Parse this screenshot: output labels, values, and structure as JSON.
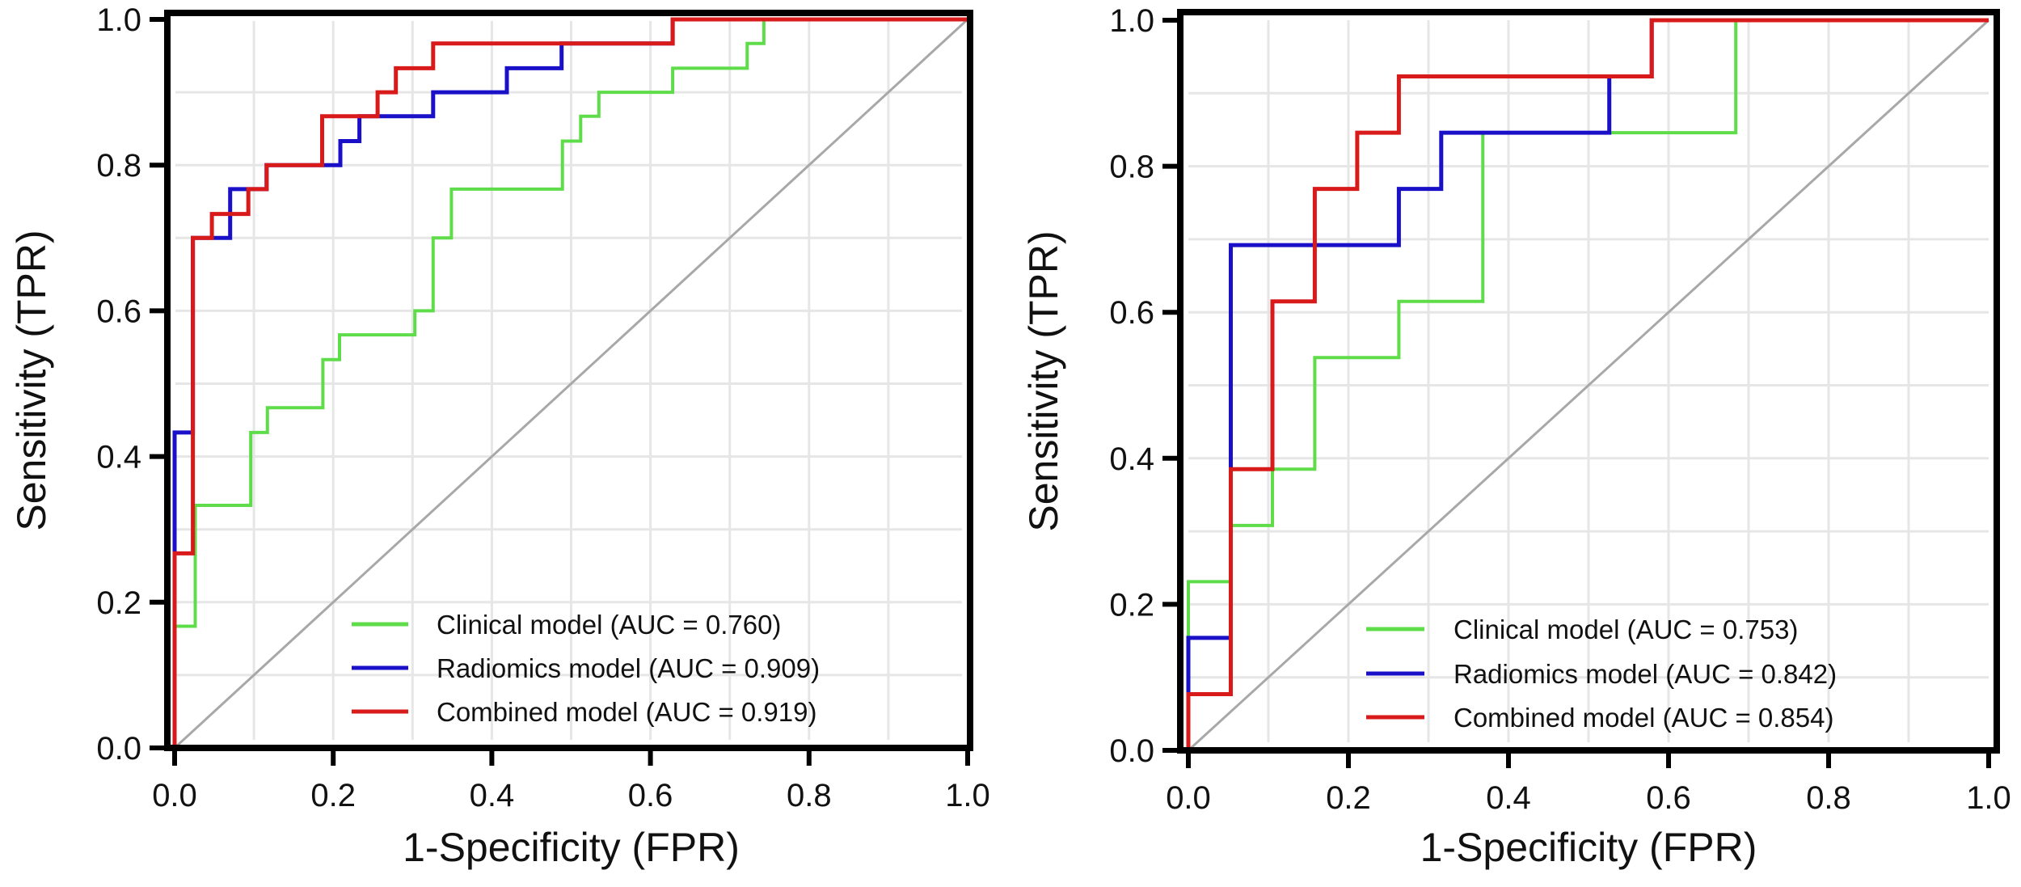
{
  "chart_data": [
    {
      "type": "line",
      "title": "",
      "xlabel": "1-Specificity (FPR)",
      "ylabel": "Sensitivity (TPR)",
      "xlim": [
        0,
        1
      ],
      "ylim": [
        0,
        1
      ],
      "xticks": [
        "0.0",
        "0.2",
        "0.4",
        "0.6",
        "0.8",
        "1.0"
      ],
      "yticks": [
        "0.0",
        "0.2",
        "0.4",
        "0.6",
        "0.8",
        "1.0"
      ],
      "grid": true,
      "legend_position": "bottom-right",
      "reference_line": {
        "x": [
          0,
          1
        ],
        "y": [
          0,
          1
        ],
        "color": "#a8a8a8"
      },
      "series": [
        {
          "name": "Clinical model (AUC = 0.760)",
          "color": "#5fdc4a",
          "x": [
            0,
            0,
            0.026,
            0.026,
            0.096,
            0.096,
            0.117,
            0.117,
            0.187,
            0.187,
            0.208,
            0.208,
            0.303,
            0.303,
            0.326,
            0.326,
            0.349,
            0.349,
            0.489,
            0.489,
            0.512,
            0.512,
            0.535,
            0.535,
            0.628,
            0.628,
            0.722,
            0.722,
            0.743,
            0.743,
            1
          ],
          "y": [
            0,
            0.167,
            0.167,
            0.333,
            0.333,
            0.433,
            0.433,
            0.467,
            0.467,
            0.533,
            0.533,
            0.567,
            0.567,
            0.6,
            0.6,
            0.7,
            0.7,
            0.767,
            0.767,
            0.833,
            0.833,
            0.867,
            0.867,
            0.9,
            0.9,
            0.933,
            0.933,
            0.967,
            0.967,
            1,
            1
          ]
        },
        {
          "name": "Radiomics model (AUC = 0.909)",
          "color": "#1a10c8",
          "x": [
            0,
            0,
            0.023,
            0.023,
            0.07,
            0.07,
            0.116,
            0.116,
            0.209,
            0.209,
            0.233,
            0.233,
            0.326,
            0.326,
            0.419,
            0.419,
            0.488,
            0.488,
            0.628,
            0.628,
            1
          ],
          "y": [
            0,
            0.433,
            0.433,
            0.7,
            0.7,
            0.767,
            0.767,
            0.8,
            0.8,
            0.833,
            0.833,
            0.867,
            0.867,
            0.9,
            0.9,
            0.933,
            0.933,
            0.967,
            0.967,
            1,
            1
          ]
        },
        {
          "name": "Combined model (AUC = 0.919)",
          "color": "#d91a1a",
          "x": [
            0,
            0,
            0.023,
            0.023,
            0.047,
            0.047,
            0.093,
            0.093,
            0.116,
            0.116,
            0.186,
            0.186,
            0.256,
            0.256,
            0.279,
            0.279,
            0.326,
            0.326,
            0.628,
            0.628,
            1
          ],
          "y": [
            0,
            0.267,
            0.267,
            0.7,
            0.7,
            0.733,
            0.733,
            0.767,
            0.767,
            0.8,
            0.8,
            0.867,
            0.867,
            0.9,
            0.9,
            0.933,
            0.933,
            0.967,
            0.967,
            1,
            1
          ]
        }
      ]
    },
    {
      "type": "line",
      "title": "",
      "xlabel": "1-Specificity (FPR)",
      "ylabel": "Sensitivity (TPR)",
      "xlim": [
        0,
        1
      ],
      "ylim": [
        0,
        1
      ],
      "xticks": [
        "0.0",
        "0.2",
        "0.4",
        "0.6",
        "0.8",
        "1.0"
      ],
      "yticks": [
        "0.0",
        "0.2",
        "0.4",
        "0.6",
        "0.8",
        "1.0"
      ],
      "grid": true,
      "legend_position": "bottom-right",
      "reference_line": {
        "x": [
          0,
          1
        ],
        "y": [
          0,
          1
        ],
        "color": "#a8a8a8"
      },
      "series": [
        {
          "name": "Clinical model (AUC = 0.753)",
          "color": "#5fdc4a",
          "x": [
            0,
            0,
            0.053,
            0.053,
            0.105,
            0.105,
            0.158,
            0.158,
            0.263,
            0.263,
            0.368,
            0.368,
            0.684,
            0.684,
            1
          ],
          "y": [
            0,
            0.231,
            0.231,
            0.308,
            0.308,
            0.385,
            0.385,
            0.538,
            0.538,
            0.615,
            0.615,
            0.846,
            0.846,
            1,
            1
          ]
        },
        {
          "name": "Radiomics model (AUC = 0.842)",
          "color": "#1a10c8",
          "x": [
            0,
            0,
            0.053,
            0.053,
            0.263,
            0.263,
            0.316,
            0.316,
            0.526,
            0.526,
            0.579,
            0.579,
            1
          ],
          "y": [
            0,
            0.154,
            0.154,
            0.692,
            0.692,
            0.769,
            0.769,
            0.846,
            0.846,
            0.923,
            0.923,
            1,
            1
          ]
        },
        {
          "name": "Combined model (AUC = 0.854)",
          "color": "#d91a1a",
          "x": [
            0,
            0,
            0.053,
            0.053,
            0.105,
            0.105,
            0.158,
            0.158,
            0.211,
            0.211,
            0.263,
            0.263,
            0.579,
            0.579,
            1
          ],
          "y": [
            0,
            0.077,
            0.077,
            0.385,
            0.385,
            0.615,
            0.615,
            0.769,
            0.769,
            0.846,
            0.846,
            0.923,
            0.923,
            1,
            1
          ]
        }
      ]
    }
  ]
}
